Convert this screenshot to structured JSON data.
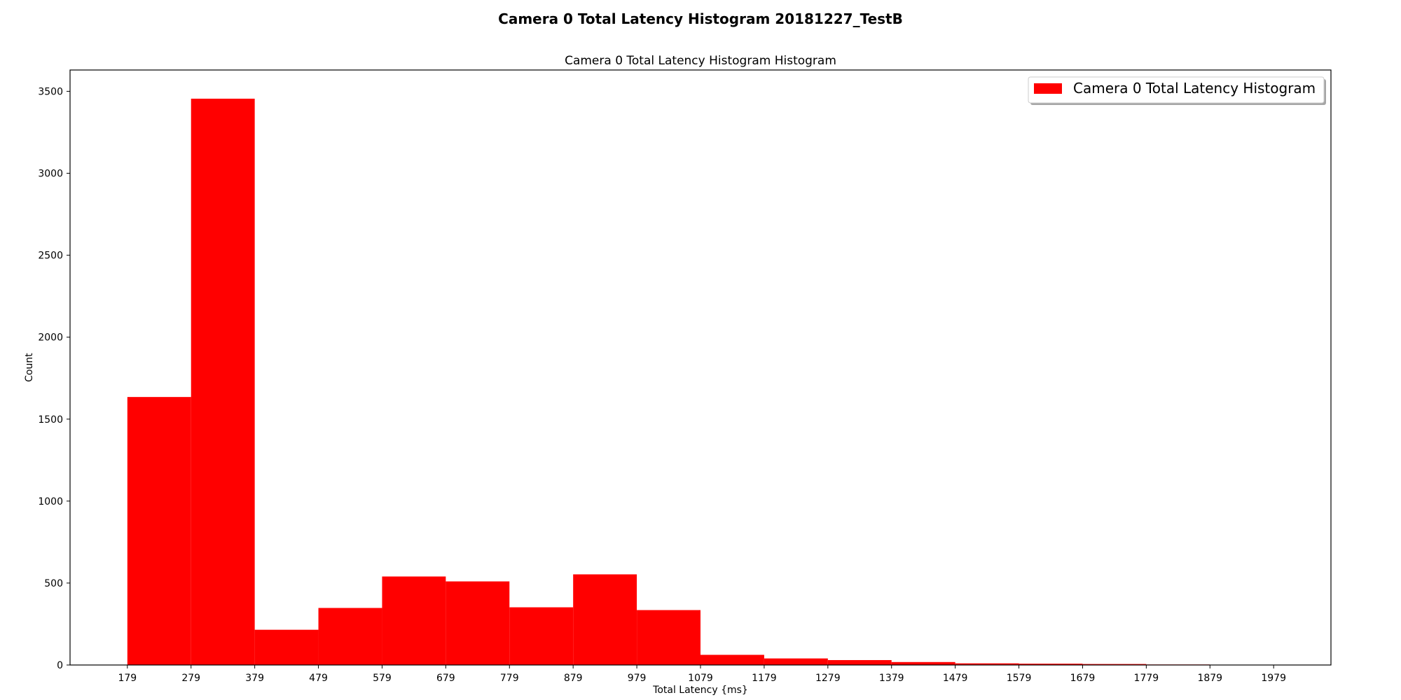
{
  "chart_data": {
    "type": "bar",
    "title": "Camera 0 Total Latency Histogram 20181227_TestB",
    "subtitle": "Camera 0 Total Latency Histogram Histogram",
    "xlabel": "Total Latency {ms}",
    "ylabel": "Count",
    "xlim": [
      89,
      2069
    ],
    "ylim": [
      0,
      3630
    ],
    "bin_edges": [
      179,
      279,
      379,
      479,
      579,
      679,
      779,
      879,
      979,
      1079,
      1179,
      1279,
      1379,
      1479,
      1579,
      1679,
      1779,
      1879,
      1979
    ],
    "x_ticks": [
      "179",
      "279",
      "379",
      "479",
      "579",
      "679",
      "779",
      "879",
      "979",
      "1079",
      "1179",
      "1279",
      "1379",
      "1479",
      "1579",
      "1679",
      "1779",
      "1879",
      "1979"
    ],
    "y_ticks": [
      "0",
      "500",
      "1000",
      "1500",
      "2000",
      "2500",
      "3000",
      "3500"
    ],
    "series": [
      {
        "name": "Camera 0 Total Latency Histogram",
        "color": "#ff0000",
        "values": [
          1635,
          3455,
          215,
          348,
          540,
          510,
          352,
          553,
          335,
          62,
          40,
          30,
          18,
          10,
          8,
          6,
          3,
          0,
          8
        ]
      }
    ],
    "legend": "top-right",
    "grid": false
  }
}
